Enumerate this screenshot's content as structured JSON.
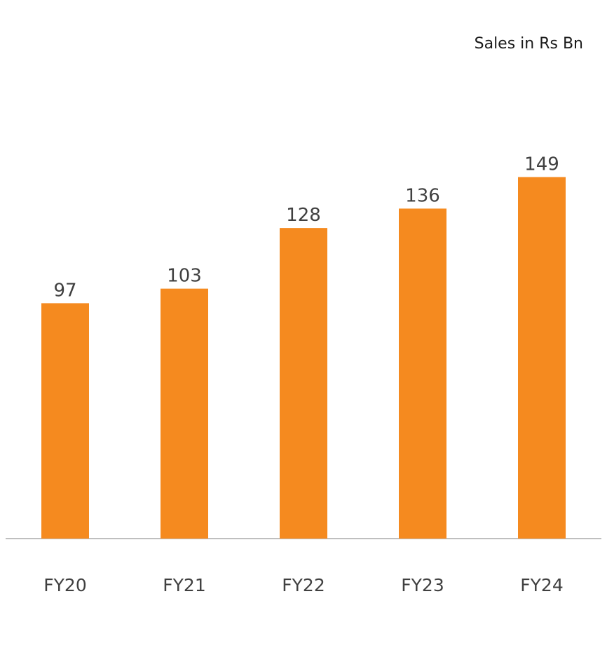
{
  "chart_data": {
    "type": "bar",
    "title": "Sales in Rs Bn",
    "categories": [
      "FY20",
      "FY21",
      "FY22",
      "FY23",
      "FY24"
    ],
    "series": [
      {
        "values": [
          97,
          103,
          128,
          136,
          149
        ]
      }
    ],
    "data_labels": [
      "97",
      "103",
      "128",
      "136",
      "149"
    ],
    "ylim": [
      0,
      160
    ],
    "grid": false,
    "legend": "none",
    "colors": {
      "bar": "#F58A1F",
      "axis": "#BFBFBF",
      "label": "#404040"
    }
  }
}
